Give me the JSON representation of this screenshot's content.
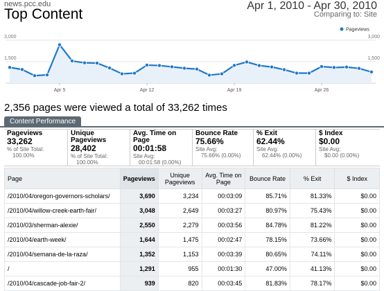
{
  "header": {
    "site": "news.pcc.edu",
    "title": "Top Content",
    "date_range": "Apr 1, 2010 - Apr 30, 2010",
    "comparing_label": "Comparing to:",
    "comparing_value": "Site"
  },
  "colors": {
    "accent": "#1f78c8",
    "tab": "#5d6a73"
  },
  "chart_data": {
    "type": "line",
    "series": [
      {
        "name": "Pageviews",
        "values": [
          1100,
          950,
          520,
          580,
          2680,
          1550,
          1420,
          1400,
          1060,
          650,
          700,
          1260,
          1230,
          1140,
          1040,
          980,
          560,
          650,
          1240,
          1480,
          1230,
          1130,
          940,
          700,
          700,
          1160,
          1090,
          1120,
          1030,
          780
        ]
      }
    ],
    "x_tick_labels": [
      "Apr 5",
      "Apr 12",
      "Apr 19",
      "Apr 26"
    ],
    "x_tick_positions": [
      5,
      12,
      19,
      26
    ],
    "y_ticks": [
      "3,000",
      "1,500"
    ],
    "ylim": [
      0,
      3000
    ],
    "legend": "top-right",
    "grid": true
  },
  "summary": "2,356 pages were viewed a total of 33,262 times",
  "tab_label": "Content Performance",
  "metrics": [
    {
      "label": "Pageviews",
      "value": "33,262",
      "sub1": "% of Site Total:",
      "sub2": "100.00%"
    },
    {
      "label": "Unique Pageviews",
      "value": "28,402",
      "sub1": "% of Site Total:",
      "sub2": "100.00%"
    },
    {
      "label": "Avg. Time on Page",
      "value": "00:01:58",
      "sub1": "Site Avg:",
      "sub2": "00:01:58 (0.00%)"
    },
    {
      "label": "Bounce Rate",
      "value": "75.66%",
      "sub1": "Site Avg:",
      "sub2": "75.66% (0.00%)"
    },
    {
      "label": "% Exit",
      "value": "62.44%",
      "sub1": "Site Avg:",
      "sub2": "62.44% (0.00%)"
    },
    {
      "label": "$ Index",
      "value": "$0.00",
      "sub1": "Site Avg:",
      "sub2": "$0.00 (0.00%)"
    }
  ],
  "table": {
    "headers": [
      "Page",
      "Pageviews",
      "Unique Pageviews",
      "Avg. Time on Page",
      "Bounce Rate",
      "% Exit",
      "$ Index"
    ],
    "rows": [
      [
        "/2010/04/oregon-governors-scholars/",
        "3,690",
        "3,234",
        "00:03:09",
        "85.71%",
        "81.33%",
        "$0.00"
      ],
      [
        "/2010/04/willow-creek-earth-fair/",
        "3,048",
        "2,649",
        "00:03:27",
        "80.97%",
        "75.43%",
        "$0.00"
      ],
      [
        "/2010/03/sherman-alexie/",
        "2,550",
        "2,279",
        "00:03:56",
        "84.78%",
        "81.22%",
        "$0.00"
      ],
      [
        "/2010/04/earth-week/",
        "1,644",
        "1,475",
        "00:02:47",
        "78.15%",
        "73.66%",
        "$0.00"
      ],
      [
        "/2010/04/semana-de-la-raza/",
        "1,352",
        "1,153",
        "00:03:39",
        "80.65%",
        "74.11%",
        "$0.00"
      ],
      [
        "/",
        "1,291",
        "955",
        "00:01:30",
        "47.00%",
        "41.13%",
        "$0.00"
      ],
      [
        "/2010/04/cascade-job-fair-2/",
        "939",
        "820",
        "00:03:45",
        "81.83%",
        "78.17%",
        "$0.00"
      ]
    ]
  }
}
